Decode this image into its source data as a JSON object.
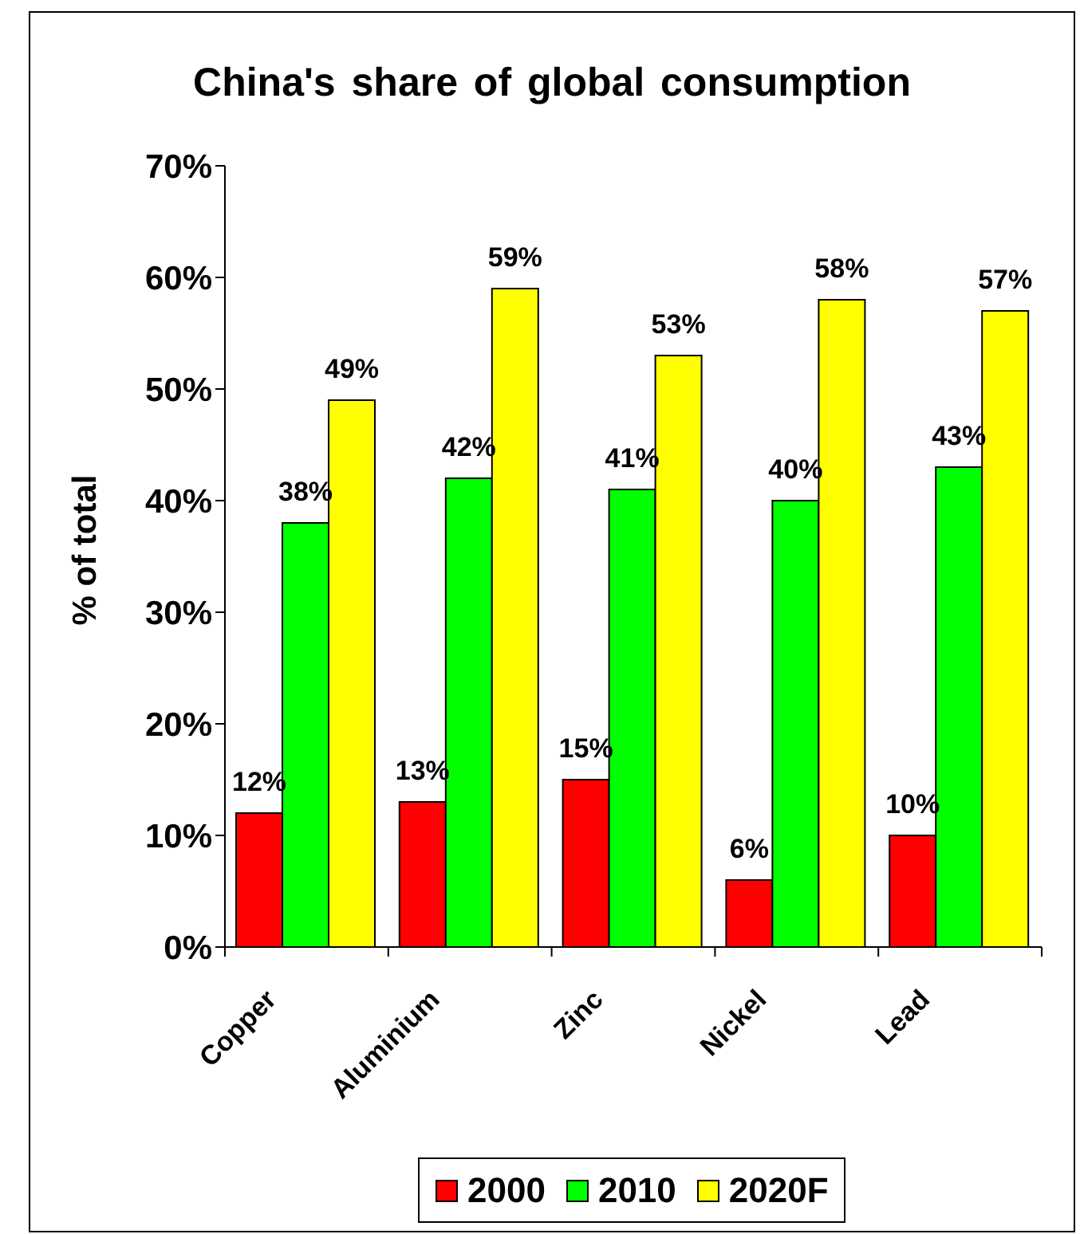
{
  "chart_data": {
    "type": "bar",
    "title": "China's share of global consumption",
    "ylabel": "% of total",
    "categories": [
      "Copper",
      "Aluminium",
      "Zinc",
      "Nickel",
      "Lead"
    ],
    "series": [
      {
        "name": "2000",
        "color": "#ff0000",
        "values": [
          12,
          13,
          15,
          6,
          10
        ],
        "value_labels": [
          "12%",
          "13%",
          "15%",
          "6%",
          "10%"
        ]
      },
      {
        "name": "2010",
        "color": "#00ff00",
        "values": [
          38,
          42,
          41,
          40,
          43
        ],
        "value_labels": [
          "38%",
          "42%",
          "41%",
          "40%",
          "43%"
        ]
      },
      {
        "name": "2020F",
        "color": "#ffff00",
        "values": [
          49,
          59,
          53,
          58,
          57
        ],
        "value_labels": [
          "49%",
          "59%",
          "53%",
          "58%",
          "57%"
        ]
      }
    ],
    "ylim": [
      0,
      70
    ],
    "yticks": [
      {
        "value": 0,
        "label": "0%"
      },
      {
        "value": 10,
        "label": "10%"
      },
      {
        "value": 20,
        "label": "20%"
      },
      {
        "value": 30,
        "label": "30%"
      },
      {
        "value": 40,
        "label": "40%"
      },
      {
        "value": 50,
        "label": "50%"
      },
      {
        "value": 60,
        "label": "60%"
      },
      {
        "value": 70,
        "label": "70%"
      }
    ],
    "legend": "bottom"
  }
}
